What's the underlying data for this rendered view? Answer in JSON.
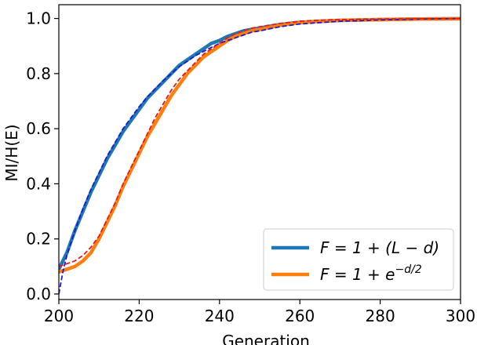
{
  "chart_data": {
    "type": "line",
    "xlabel": "Generation",
    "ylabel": "MI/H(E)",
    "xlim": [
      200,
      300
    ],
    "ylim": [
      -0.02,
      1.05
    ],
    "xticks": [
      200,
      220,
      240,
      260,
      280,
      300
    ],
    "yticks": [
      0.0,
      0.2,
      0.4,
      0.6,
      0.8,
      1.0
    ],
    "xtick_labels": [
      "200",
      "220",
      "240",
      "260",
      "280",
      "300"
    ],
    "ytick_labels": [
      "0.0",
      "0.2",
      "0.4",
      "0.6",
      "0.8",
      "1.0"
    ],
    "grid": false,
    "legend_position": "lower-right",
    "series": [
      {
        "name": "F = 1 + (L − d)",
        "style": "solid",
        "color": "#1f77b4",
        "x": [
          200,
          202,
          204,
          206,
          208,
          210,
          212,
          214,
          216,
          218,
          220,
          222,
          224,
          226,
          228,
          230,
          232,
          234,
          236,
          238,
          240,
          242,
          244,
          246,
          248,
          250,
          255,
          260,
          265,
          270,
          280,
          290,
          300
        ],
        "y": [
          0.09,
          0.15,
          0.23,
          0.3,
          0.37,
          0.43,
          0.49,
          0.54,
          0.59,
          0.63,
          0.67,
          0.71,
          0.74,
          0.77,
          0.8,
          0.83,
          0.85,
          0.87,
          0.89,
          0.91,
          0.92,
          0.935,
          0.945,
          0.955,
          0.96,
          0.965,
          0.978,
          0.986,
          0.99,
          0.993,
          0.996,
          0.998,
          0.999
        ]
      },
      {
        "name": "F = 1 + e^(−d/2)",
        "style": "solid",
        "color": "#ff7f0e",
        "x": [
          200,
          202,
          204,
          206,
          208,
          210,
          212,
          214,
          216,
          218,
          220,
          222,
          224,
          226,
          228,
          230,
          232,
          234,
          236,
          238,
          240,
          242,
          244,
          246,
          248,
          250,
          255,
          260,
          265,
          270,
          280,
          290,
          300
        ],
        "y": [
          0.08,
          0.09,
          0.1,
          0.12,
          0.15,
          0.2,
          0.26,
          0.32,
          0.39,
          0.45,
          0.51,
          0.57,
          0.62,
          0.67,
          0.72,
          0.76,
          0.8,
          0.83,
          0.86,
          0.88,
          0.9,
          0.92,
          0.935,
          0.945,
          0.955,
          0.96,
          0.975,
          0.985,
          0.99,
          0.993,
          0.996,
          0.998,
          0.999
        ]
      },
      {
        "name": "",
        "style": "dashed",
        "color": "#1a1ad6",
        "x": [
          200,
          201,
          202,
          204,
          206,
          208,
          210,
          212,
          214,
          216,
          218,
          220,
          222,
          224,
          226,
          228,
          230,
          232,
          234,
          236,
          238,
          240,
          242,
          244,
          246,
          248,
          250,
          255,
          260,
          270,
          280,
          290,
          300
        ],
        "y": [
          0.0,
          0.08,
          0.14,
          0.23,
          0.31,
          0.38,
          0.44,
          0.5,
          0.55,
          0.6,
          0.64,
          0.68,
          0.715,
          0.745,
          0.775,
          0.8,
          0.825,
          0.845,
          0.865,
          0.88,
          0.895,
          0.91,
          0.92,
          0.93,
          0.94,
          0.95,
          0.955,
          0.97,
          0.98,
          0.99,
          0.995,
          0.998,
          1.0
        ]
      },
      {
        "name": "",
        "style": "dashed",
        "color": "#e41a1c",
        "x": [
          200,
          202,
          204,
          206,
          208,
          210,
          212,
          214,
          216,
          218,
          220,
          222,
          224,
          226,
          228,
          230,
          232,
          234,
          236,
          238,
          240,
          242,
          244,
          246,
          248,
          250,
          255,
          260,
          265,
          270,
          280,
          290,
          300
        ],
        "y": [
          0.1,
          0.11,
          0.12,
          0.14,
          0.17,
          0.21,
          0.27,
          0.33,
          0.4,
          0.46,
          0.52,
          0.58,
          0.64,
          0.69,
          0.74,
          0.78,
          0.81,
          0.84,
          0.87,
          0.89,
          0.91,
          0.93,
          0.945,
          0.955,
          0.965,
          0.97,
          0.982,
          0.99,
          0.994,
          0.996,
          0.998,
          0.999,
          1.0
        ]
      }
    ],
    "legend": [
      {
        "label_main": "F = 1 + (L − d)",
        "series_index": 0
      },
      {
        "label_main": "F = 1 + e",
        "label_sup": "−d/2",
        "series_index": 1
      }
    ]
  }
}
